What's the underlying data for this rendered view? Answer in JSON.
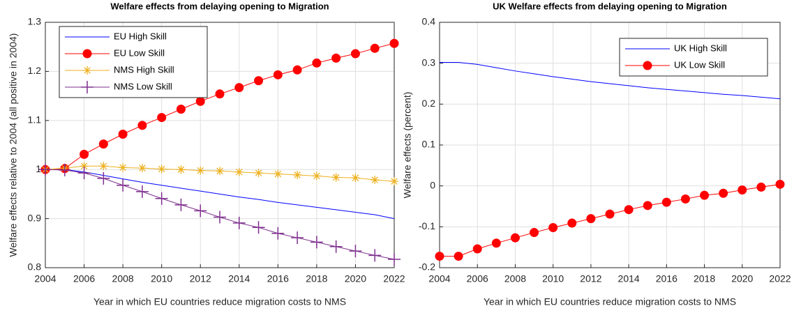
{
  "chart_data": [
    {
      "type": "line",
      "title": "Welfare effects from delaying opening to Migration",
      "xlabel": "Year in which EU countries reduce migration costs to NMS",
      "ylabel": "Welfare effects relative to 2004 (all positive in 2004)",
      "x": [
        2004,
        2005,
        2006,
        2007,
        2008,
        2009,
        2010,
        2011,
        2012,
        2013,
        2014,
        2015,
        2016,
        2017,
        2018,
        2019,
        2020,
        2021,
        2022
      ],
      "xlim": [
        2004,
        2022
      ],
      "xticks": [
        2004,
        2006,
        2008,
        2010,
        2012,
        2014,
        2016,
        2018,
        2020,
        2022
      ],
      "ylim": [
        0.8,
        1.3
      ],
      "yticks": [
        0.8,
        0.9,
        1,
        1.1,
        1.2,
        1.3
      ],
      "grid": true,
      "legend": "northwest",
      "series": [
        {
          "name": "EU High Skill",
          "color": "#0000ff",
          "marker": "none",
          "values": [
            1,
            1,
            0.995,
            0.988,
            0.981,
            0.974,
            0.968,
            0.962,
            0.956,
            0.95,
            0.944,
            0.939,
            0.933,
            0.928,
            0.923,
            0.918,
            0.913,
            0.908,
            0.9
          ]
        },
        {
          "name": "EU Low Skill",
          "color": "#ff0000",
          "marker": "o",
          "values": [
            1,
            1.002,
            1.031,
            1.052,
            1.072,
            1.09,
            1.106,
            1.123,
            1.139,
            1.154,
            1.167,
            1.181,
            1.193,
            1.203,
            1.217,
            1.227,
            1.236,
            1.247,
            1.257
          ]
        },
        {
          "name": "NMS High Skill",
          "color": "#edb120",
          "marker": "*",
          "values": [
            1,
            1.003,
            1.007,
            1.007,
            1.004,
            1.003,
            1.001,
            1,
            0.998,
            0.997,
            0.995,
            0.993,
            0.991,
            0.989,
            0.987,
            0.984,
            0.983,
            0.979,
            0.976
          ]
        },
        {
          "name": "NMS Low Skill",
          "color": "#7e2f8e",
          "marker": "+",
          "values": [
            1,
            0.999,
            0.993,
            0.982,
            0.968,
            0.955,
            0.941,
            0.928,
            0.916,
            0.903,
            0.891,
            0.882,
            0.87,
            0.861,
            0.852,
            0.843,
            0.834,
            0.825,
            0.817
          ]
        }
      ]
    },
    {
      "type": "line",
      "title": "UK Welfare effects from delaying opening to Migration",
      "xlabel": "Year in which EU countries reduce migration costs to NMS",
      "ylabel": "Welfare effects (percent)",
      "x": [
        2004,
        2005,
        2006,
        2007,
        2008,
        2009,
        2010,
        2011,
        2012,
        2013,
        2014,
        2015,
        2016,
        2017,
        2018,
        2019,
        2020,
        2021,
        2022
      ],
      "xlim": [
        2004,
        2022
      ],
      "xticks": [
        2004,
        2006,
        2008,
        2010,
        2012,
        2014,
        2016,
        2018,
        2020,
        2022
      ],
      "ylim": [
        -0.2,
        0.4
      ],
      "yticks": [
        -0.2,
        -0.1,
        0,
        0.1,
        0.2,
        0.3,
        0.4
      ],
      "grid": true,
      "legend": "northeast",
      "series": [
        {
          "name": "UK High Skill",
          "color": "#0000ff",
          "marker": "none",
          "values": [
            0.302,
            0.302,
            0.297,
            0.289,
            0.281,
            0.274,
            0.267,
            0.261,
            0.255,
            0.25,
            0.245,
            0.24,
            0.236,
            0.232,
            0.228,
            0.224,
            0.221,
            0.217,
            0.213
          ]
        },
        {
          "name": "UK Low Skill",
          "color": "#ff0000",
          "marker": "o",
          "values": [
            -0.172,
            -0.172,
            -0.154,
            -0.14,
            -0.127,
            -0.114,
            -0.102,
            -0.091,
            -0.08,
            -0.069,
            -0.058,
            -0.048,
            -0.04,
            -0.032,
            -0.023,
            -0.018,
            -0.01,
            -0.003,
            0.004
          ]
        }
      ]
    }
  ]
}
